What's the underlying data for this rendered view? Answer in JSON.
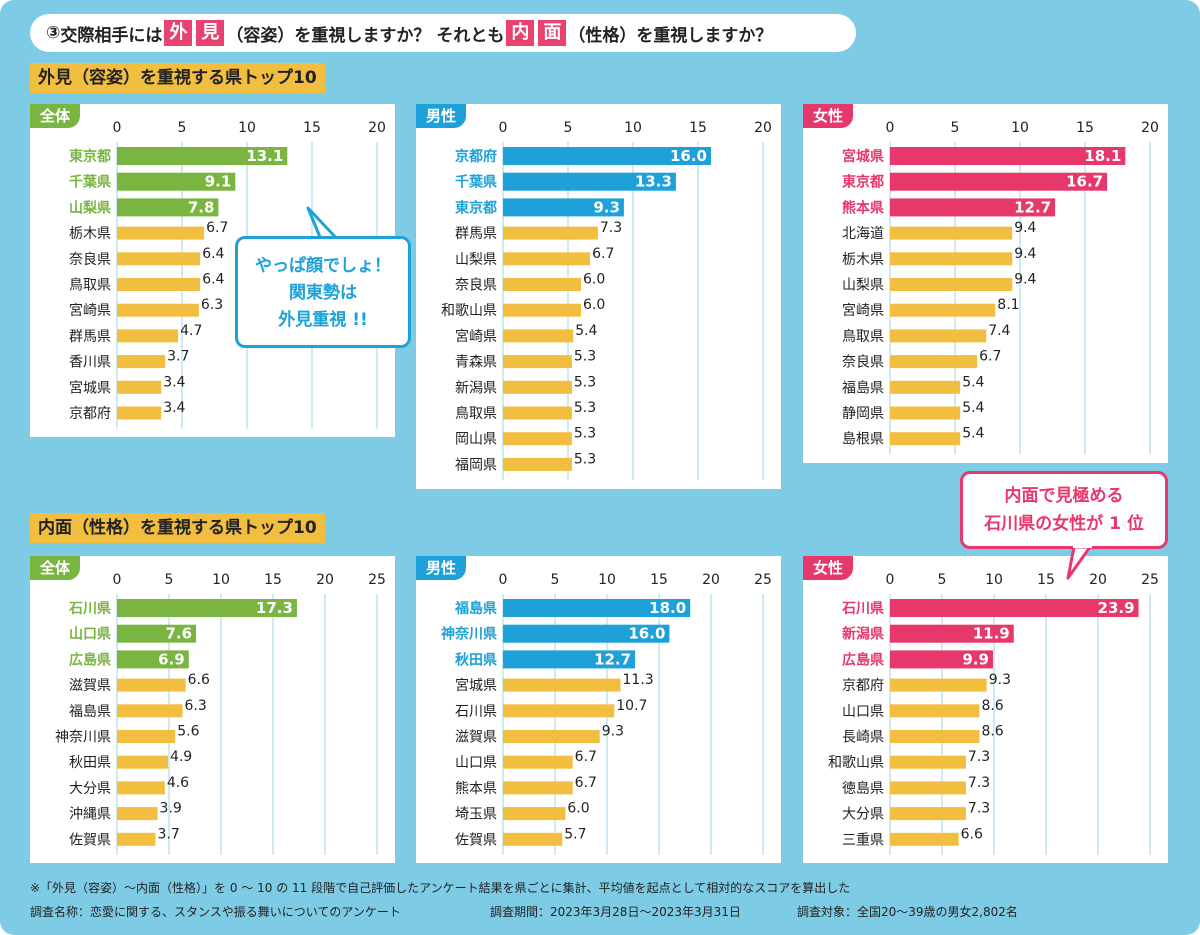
{
  "question": {
    "num": "③",
    "t1": "交際相手には",
    "h1a": "外",
    "h1b": "見",
    "t2": "（容姿）を重視しますか？ それとも",
    "h2a": "内",
    "h2b": "面",
    "t3": "（性格）を重視しますか？"
  },
  "section1_title": "外見（容姿）を重視する県トップ10",
  "section2_title": "内面（性格）を重視する県トップ10",
  "bubble1": {
    "line1": "やっぱ顔でしょ！",
    "line2": "関東勢は",
    "line3": "外見重視 !!"
  },
  "bubble2": {
    "line1": "内面で見極める",
    "line2": "石川県の女性が 1 位"
  },
  "colors": {
    "all": "#7BB541",
    "male": "#1EA1D9",
    "female": "#E6386B",
    "bar": "#F2BE3F",
    "bg": "#7ECBE5"
  },
  "chart_data": [
    {
      "type": "bar",
      "orientation": "horizontal",
      "tab": "全体",
      "ticks": [
        0,
        5,
        10,
        15,
        20
      ],
      "xlim": [
        0,
        20
      ],
      "categories": [
        "東京都",
        "千葉県",
        "山梨県",
        "栃木県",
        "奈良県",
        "鳥取県",
        "宮崎県",
        "群馬県",
        "香川県",
        "宮城県",
        "京都府"
      ],
      "values": [
        13.1,
        9.1,
        7.8,
        6.7,
        6.4,
        6.4,
        6.3,
        4.7,
        3.7,
        3.4,
        3.4
      ],
      "labels": [
        "13.1",
        "9.1",
        "7.8",
        "6.7",
        "6.4",
        "6.4",
        "6.3",
        "4.7",
        "3.7",
        "3.4",
        "3.4"
      ]
    },
    {
      "type": "bar",
      "orientation": "horizontal",
      "tab": "男性",
      "ticks": [
        0,
        5,
        10,
        15,
        20
      ],
      "xlim": [
        0,
        20
      ],
      "categories": [
        "京都府",
        "千葉県",
        "東京都",
        "群馬県",
        "山梨県",
        "奈良県",
        "和歌山県",
        "宮崎県",
        "青森県",
        "新潟県",
        "鳥取県",
        "岡山県",
        "福岡県"
      ],
      "values": [
        16.0,
        13.3,
        9.3,
        7.3,
        6.7,
        6.0,
        6.0,
        5.4,
        5.3,
        5.3,
        5.3,
        5.3,
        5.3
      ],
      "labels": [
        "16.0",
        "13.3",
        "9.3",
        "7.3",
        "6.7",
        "6.0",
        "6.0",
        "5.4",
        "5.3",
        "5.3",
        "5.3",
        "5.3",
        "5.3"
      ]
    },
    {
      "type": "bar",
      "orientation": "horizontal",
      "tab": "女性",
      "ticks": [
        0,
        5,
        10,
        15,
        20
      ],
      "xlim": [
        0,
        20
      ],
      "categories": [
        "宮城県",
        "東京都",
        "熊本県",
        "北海道",
        "栃木県",
        "山梨県",
        "宮崎県",
        "鳥取県",
        "奈良県",
        "福島県",
        "静岡県",
        "島根県"
      ],
      "values": [
        18.1,
        16.7,
        12.7,
        9.4,
        9.4,
        9.4,
        8.1,
        7.4,
        6.7,
        5.4,
        5.4,
        5.4
      ],
      "labels": [
        "18.1",
        "16.7",
        "12.7",
        "9.4",
        "9.4",
        "9.4",
        "8.1",
        "7.4",
        "6.7",
        "5.4",
        "5.4",
        "5.4"
      ]
    },
    {
      "type": "bar",
      "orientation": "horizontal",
      "tab": "全体",
      "ticks": [
        0,
        5,
        10,
        15,
        20,
        25
      ],
      "xlim": [
        0,
        25
      ],
      "categories": [
        "石川県",
        "山口県",
        "広島県",
        "滋賀県",
        "福島県",
        "神奈川県",
        "秋田県",
        "大分県",
        "沖縄県",
        "佐賀県"
      ],
      "values": [
        17.3,
        7.6,
        6.9,
        6.6,
        6.3,
        5.6,
        4.9,
        4.6,
        3.9,
        3.7
      ],
      "labels": [
        "17.3",
        "7.6",
        "6.9",
        "6.6",
        "6.3",
        "5.6",
        "4.9",
        "4.6",
        "3.9",
        "3.7"
      ]
    },
    {
      "type": "bar",
      "orientation": "horizontal",
      "tab": "男性",
      "ticks": [
        0,
        5,
        10,
        15,
        20,
        25
      ],
      "xlim": [
        0,
        25
      ],
      "categories": [
        "福島県",
        "神奈川県",
        "秋田県",
        "宮城県",
        "石川県",
        "滋賀県",
        "山口県",
        "熊本県",
        "埼玉県",
        "佐賀県"
      ],
      "values": [
        18.0,
        16.0,
        12.7,
        11.3,
        10.7,
        9.3,
        6.7,
        6.7,
        6.0,
        5.7
      ],
      "labels": [
        "18.0",
        "16.0",
        "12.7",
        "11.3",
        "10.7",
        "9.3",
        "6.7",
        "6.7",
        "6.0",
        "5.7"
      ]
    },
    {
      "type": "bar",
      "orientation": "horizontal",
      "tab": "女性",
      "ticks": [
        0,
        5,
        10,
        15,
        20,
        25
      ],
      "xlim": [
        0,
        25
      ],
      "categories": [
        "石川県",
        "新潟県",
        "広島県",
        "京都府",
        "山口県",
        "長崎県",
        "和歌山県",
        "徳島県",
        "大分県",
        "三重県"
      ],
      "values": [
        23.9,
        11.9,
        9.9,
        9.3,
        8.6,
        8.6,
        7.3,
        7.3,
        7.3,
        6.6
      ],
      "labels": [
        "23.9",
        "11.9",
        "9.9",
        "9.3",
        "8.6",
        "8.6",
        "7.3",
        "7.3",
        "7.3",
        "6.6"
      ]
    }
  ],
  "footnote": "※「外見（容姿）～内面（性格）」を 0 ～ 10 の 11 段階で自己評価したアンケート結果を県ごとに集計、平均値を起点として相対的なスコアを算出した",
  "survey": {
    "name": "調査名称：恋愛に関する、スタンスや振る舞いについてのアンケート",
    "period": "調査期間：2023年3月28日～2023年3月31日",
    "target": "調査対象：全国20～39歳の男女2,802名"
  }
}
